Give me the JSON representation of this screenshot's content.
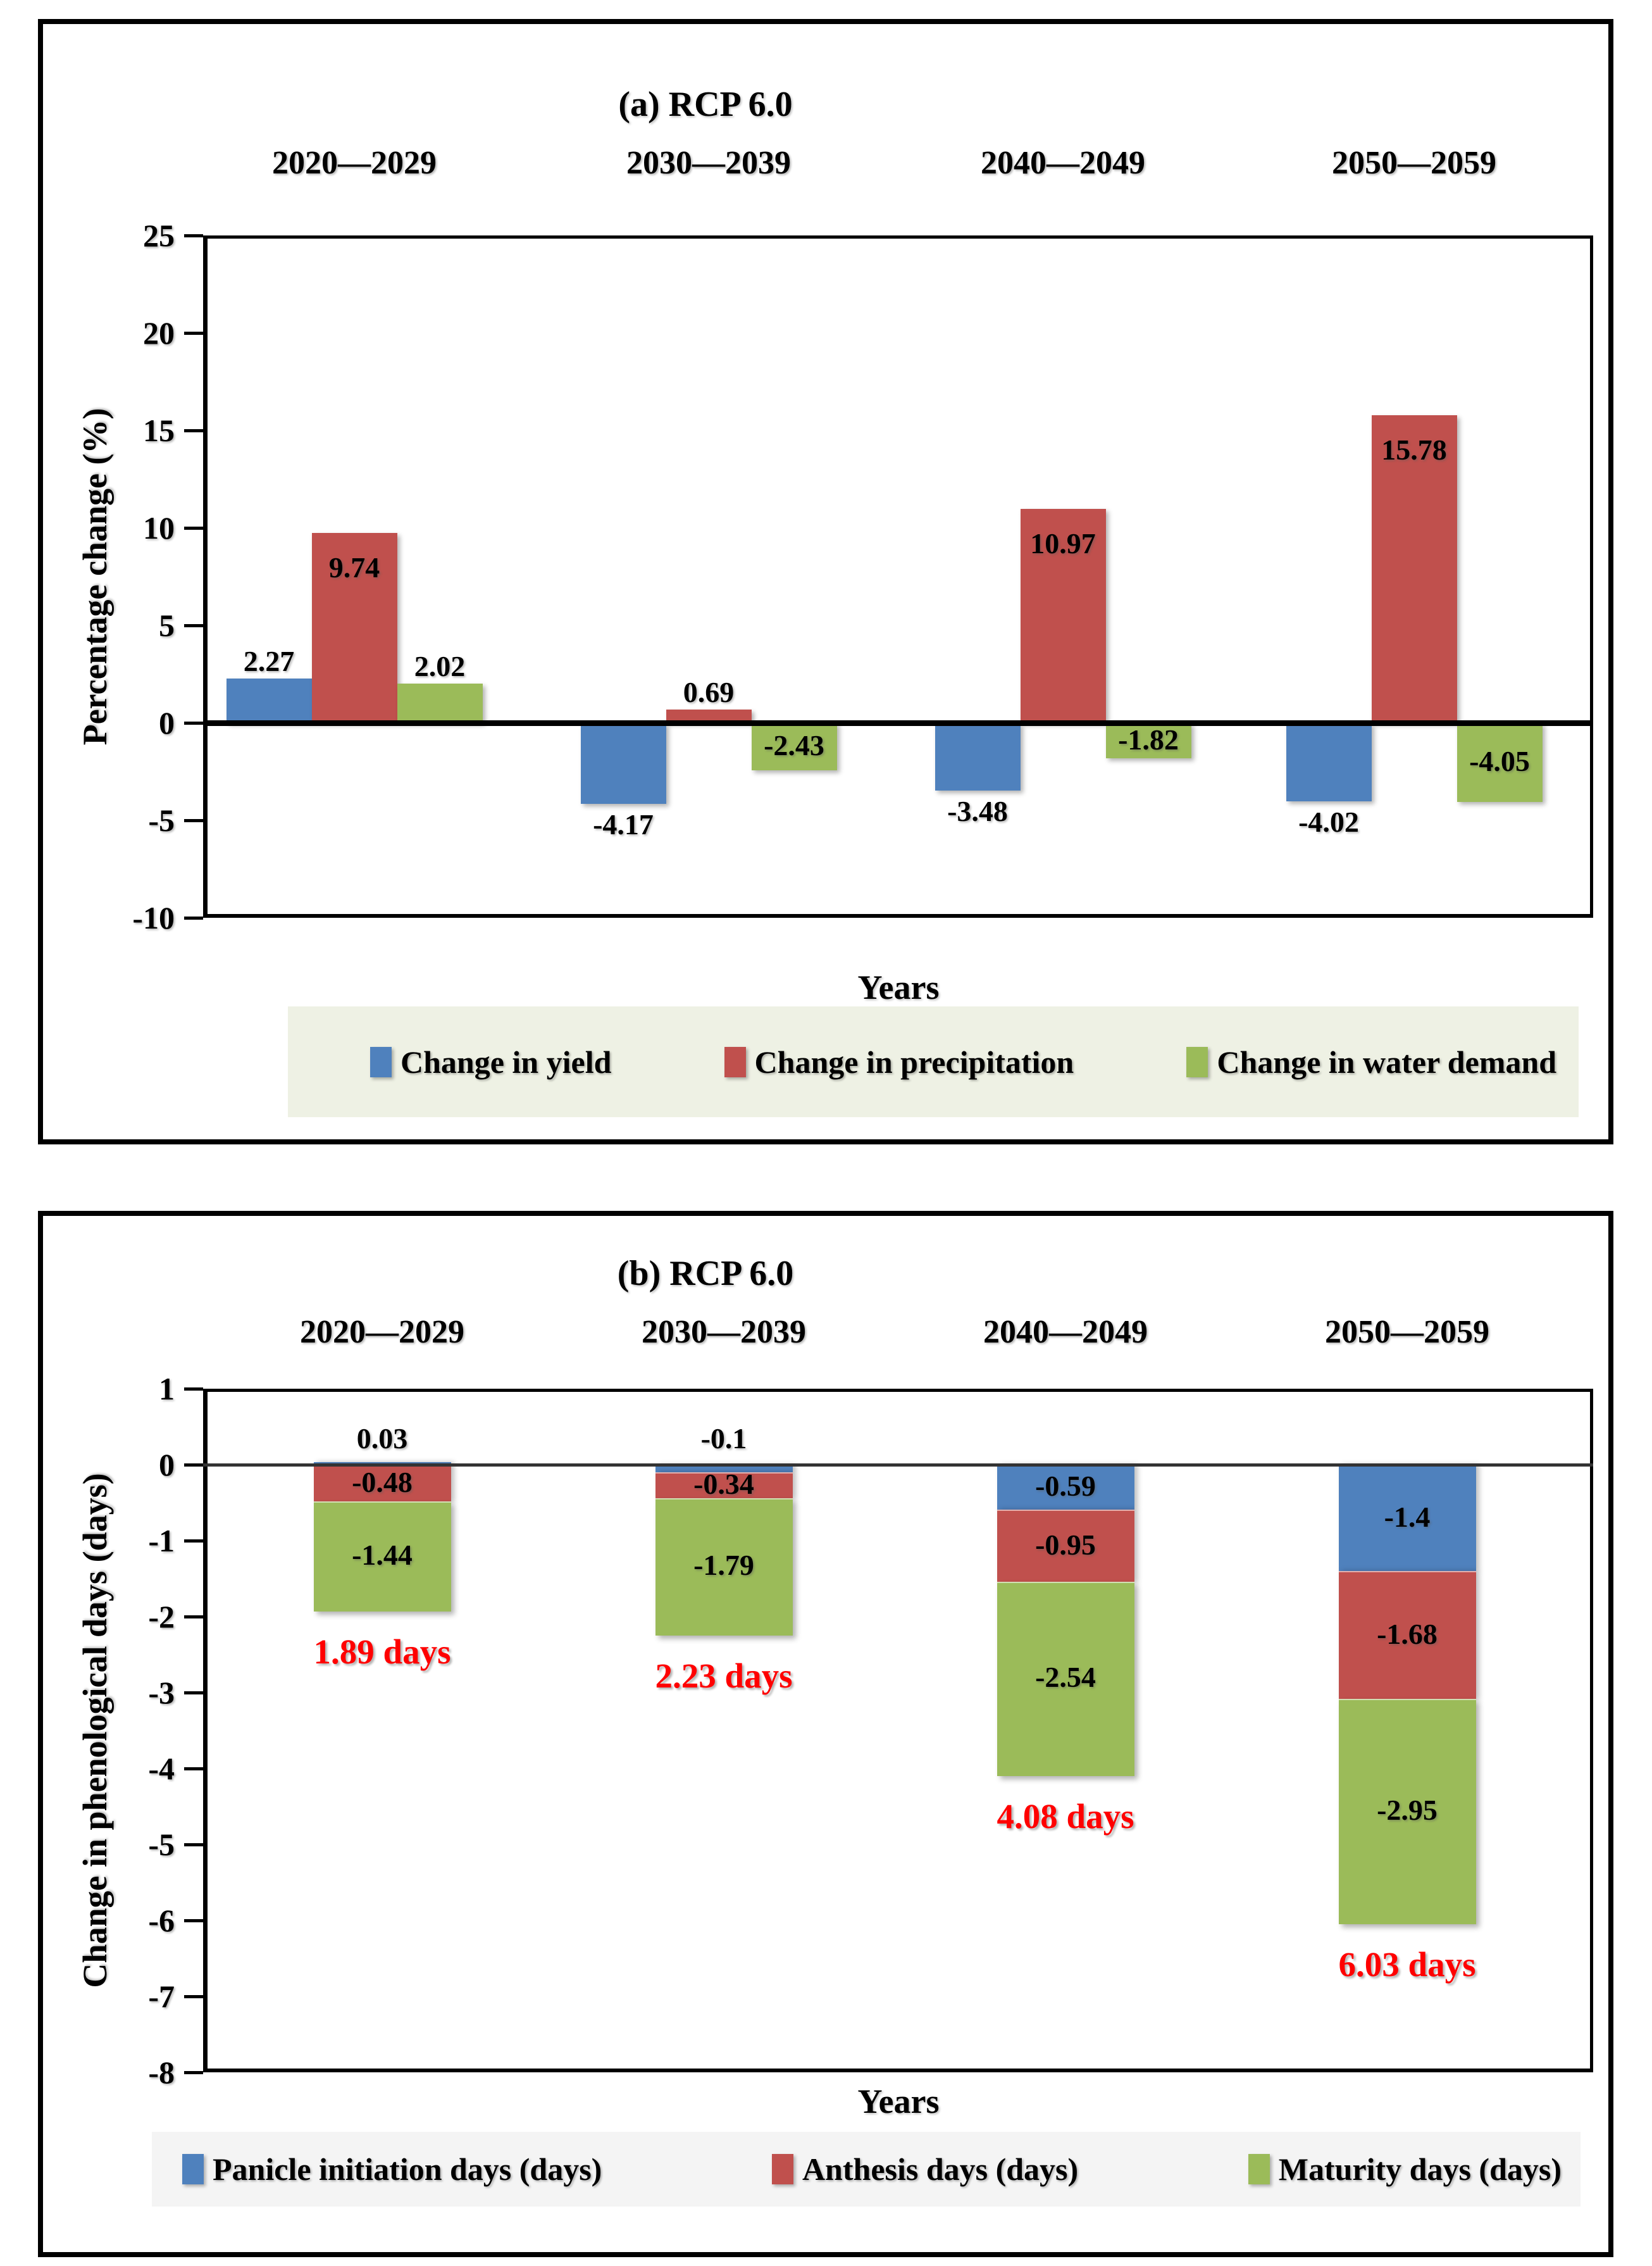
{
  "figure": {
    "background": "#ffffff",
    "text_color": "#000000",
    "totals_color": "#ff0000"
  },
  "chart_data": [
    {
      "id": "a",
      "type": "bar",
      "title": "(a) RCP 6.0",
      "xlabel": "Years",
      "ylabel": "Percentage change (%)",
      "categories": [
        "2020—2029",
        "2030—2039",
        "2040—2049",
        "2050—2059"
      ],
      "ylim": [
        -10,
        25
      ],
      "yticks": [
        25,
        20,
        15,
        10,
        5,
        0,
        "-5",
        "-10"
      ],
      "grid": false,
      "legend_position": "bottom",
      "legend_bg": "#eef1e4",
      "series": [
        {
          "name": "Change in yield",
          "color": "#4f81bd",
          "values": [
            2.27,
            -4.17,
            -3.48,
            -4.02
          ]
        },
        {
          "name": "Change in precipitation",
          "color": "#c0504d",
          "values": [
            9.74,
            0.69,
            10.97,
            15.78
          ]
        },
        {
          "name": "Change in water demand",
          "color": "#9bbb59",
          "values": [
            2.02,
            -2.43,
            -1.82,
            -4.05
          ]
        }
      ]
    },
    {
      "id": "b",
      "type": "stacked-bar",
      "title": "(b) RCP 6.0",
      "xlabel": "Years",
      "ylabel": "Change in phenological days (days)",
      "categories": [
        "2020—2029",
        "2030—2039",
        "2040—2049",
        "2050—2059"
      ],
      "ylim": [
        -8,
        1
      ],
      "yticks": [
        1,
        0,
        "-1",
        "-2",
        "-3",
        "-4",
        "-5",
        "-6",
        "-7",
        "-8"
      ],
      "grid": false,
      "legend_position": "bottom",
      "legend_bg": "#f4f4f4",
      "series": [
        {
          "name": "Panicle initiation days (days)",
          "color": "#4f81bd",
          "values": [
            0.03,
            -0.1,
            -0.59,
            -1.4
          ]
        },
        {
          "name": "Anthesis days (days)",
          "color": "#c0504d",
          "values": [
            -0.48,
            -0.34,
            -0.95,
            -1.68
          ]
        },
        {
          "name": "Maturity days (days)",
          "color": "#9bbb59",
          "values": [
            -1.44,
            -1.79,
            -2.54,
            -2.95
          ]
        }
      ],
      "totals": [
        "1.89 days",
        "2.23 days",
        "4.08 days",
        "6.03 days"
      ]
    }
  ]
}
